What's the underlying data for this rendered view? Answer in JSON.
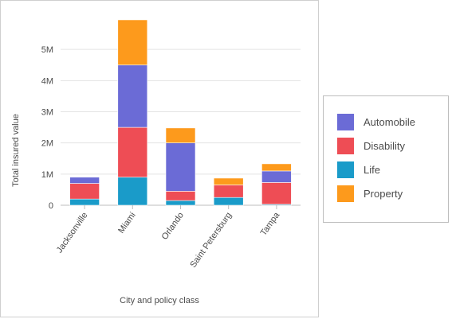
{
  "chart_data": {
    "type": "bar",
    "stacked": true,
    "xlabel": "City and policy class",
    "ylabel": "Total insured value",
    "ylim": [
      0,
      6000000
    ],
    "yticks": [
      0,
      1000000,
      2000000,
      3000000,
      4000000,
      5000000
    ],
    "ytick_labels": [
      "0",
      "1M",
      "2M",
      "3M",
      "4M",
      "5M"
    ],
    "grid": true,
    "legend_position": "right",
    "categories": [
      "Jacksonville",
      "Miami",
      "Orlando",
      "Saint Petersburg",
      "Tampa"
    ],
    "series": [
      {
        "name": "Life",
        "color": "#1a9bc9",
        "values": [
          200000,
          900000,
          150000,
          250000,
          30000
        ]
      },
      {
        "name": "Disability",
        "color": "#ee4d55",
        "values": [
          500000,
          1600000,
          300000,
          400000,
          700000
        ]
      },
      {
        "name": "Automobile",
        "color": "#6b6bd6",
        "values": [
          200000,
          2000000,
          1550000,
          0,
          370000
        ]
      },
      {
        "name": "Property",
        "color": "#fd9a1c",
        "values": [
          0,
          1450000,
          480000,
          220000,
          230000
        ]
      }
    ],
    "legend_order": [
      "Automobile",
      "Disability",
      "Life",
      "Property"
    ]
  }
}
